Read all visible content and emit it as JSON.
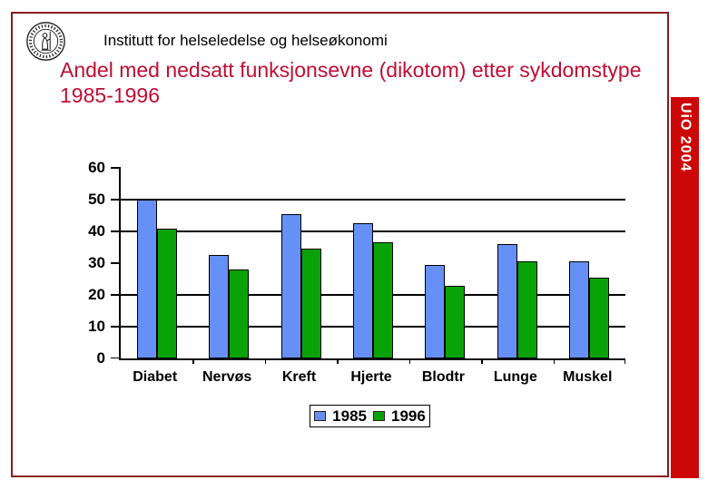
{
  "slide": {
    "institute_header": "Institutt for helseledelse og helseøkonomi",
    "title_line1": "Andel med nedsatt funksjonsevne (dikotom) etter sykdomstype",
    "title_line2": "1985-1996",
    "sidebar_label": "UiO 2004",
    "logo_name": "university-of-oslo-seal",
    "colors": {
      "title_text": "#c00d33",
      "slide_border": "#8e1822",
      "sidebar_strip": "#cc0707",
      "series_1985": "#6690f5",
      "series_1996": "#09a309"
    }
  },
  "chart_data": {
    "type": "bar",
    "title": "",
    "xlabel": "",
    "ylabel": "",
    "categories": [
      "Diabet",
      "Nervøs",
      "Kreft",
      "Hjerte",
      "Blodtr",
      "Lunge",
      "Muskel"
    ],
    "series": [
      {
        "name": "1985",
        "color": "#6690f5",
        "values": [
          50,
          32.5,
          45.5,
          42.5,
          29.5,
          36,
          30.5
        ]
      },
      {
        "name": "1996",
        "color": "#09a309",
        "values": [
          41,
          28,
          34.5,
          36.5,
          23,
          30.5,
          25.5
        ]
      }
    ],
    "ylim": [
      0,
      60
    ],
    "yticks": [
      0,
      10,
      20,
      30,
      40,
      50,
      60
    ],
    "gridlines_visible_at": [
      10,
      20,
      40,
      50
    ],
    "grid": true,
    "legend_position": "bottom",
    "legend_entries": [
      "1985",
      "1996"
    ]
  }
}
